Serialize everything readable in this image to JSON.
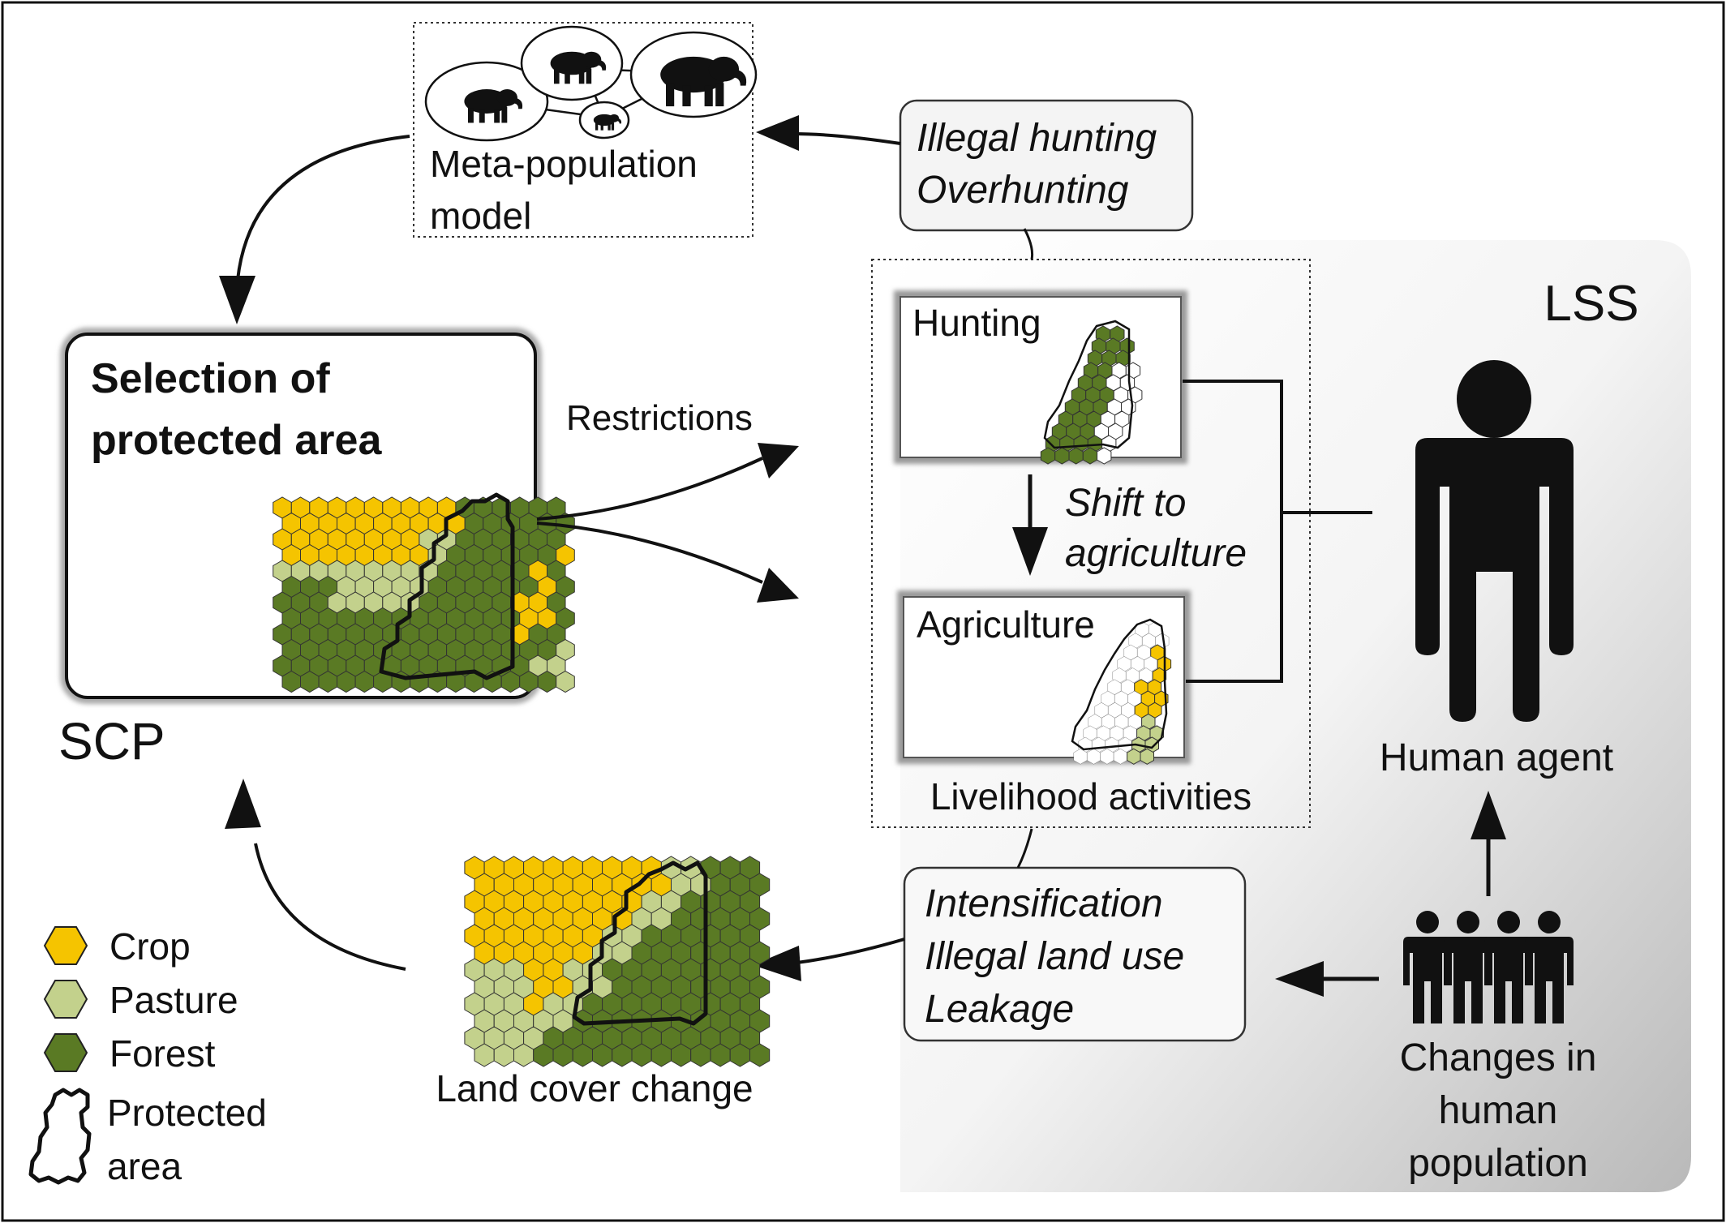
{
  "labels": {
    "meta_population_line1": "Meta-population",
    "meta_population_line2": "model",
    "threats_top_line1": "Illegal hunting",
    "threats_top_line2": "Overhunting",
    "lss": "LSS",
    "hunting": "Hunting",
    "shift_line1": "Shift to",
    "shift_line2": "agriculture",
    "agriculture": "Agriculture",
    "livelihood": "Livelihood activities",
    "selection_line1": "Selection of",
    "selection_line2": "protected area",
    "restrictions": "Restrictions",
    "scp": "SCP",
    "human_agent": "Human agent",
    "threats_bottom_line1": "Intensification",
    "threats_bottom_line2": "Illegal land use",
    "threats_bottom_line3": "Leakage",
    "land_cover_change": "Land cover change",
    "changes_line1": "Changes in",
    "changes_line2": "human",
    "changes_line3": "population"
  },
  "legend": [
    {
      "label": "Crop",
      "color": "#f5c400"
    },
    {
      "label": "Pasture",
      "color": "#c3d18c"
    },
    {
      "label": "Forest",
      "color": "#5a7a24"
    }
  ],
  "legend_protected_line1": "Protected",
  "legend_protected_line2": "area",
  "colors": {
    "crop": "#f5c400",
    "pasture": "#c3d18c",
    "forest": "#5a7a24",
    "line": "#111111",
    "lss_panel": "#e2e2e2"
  }
}
